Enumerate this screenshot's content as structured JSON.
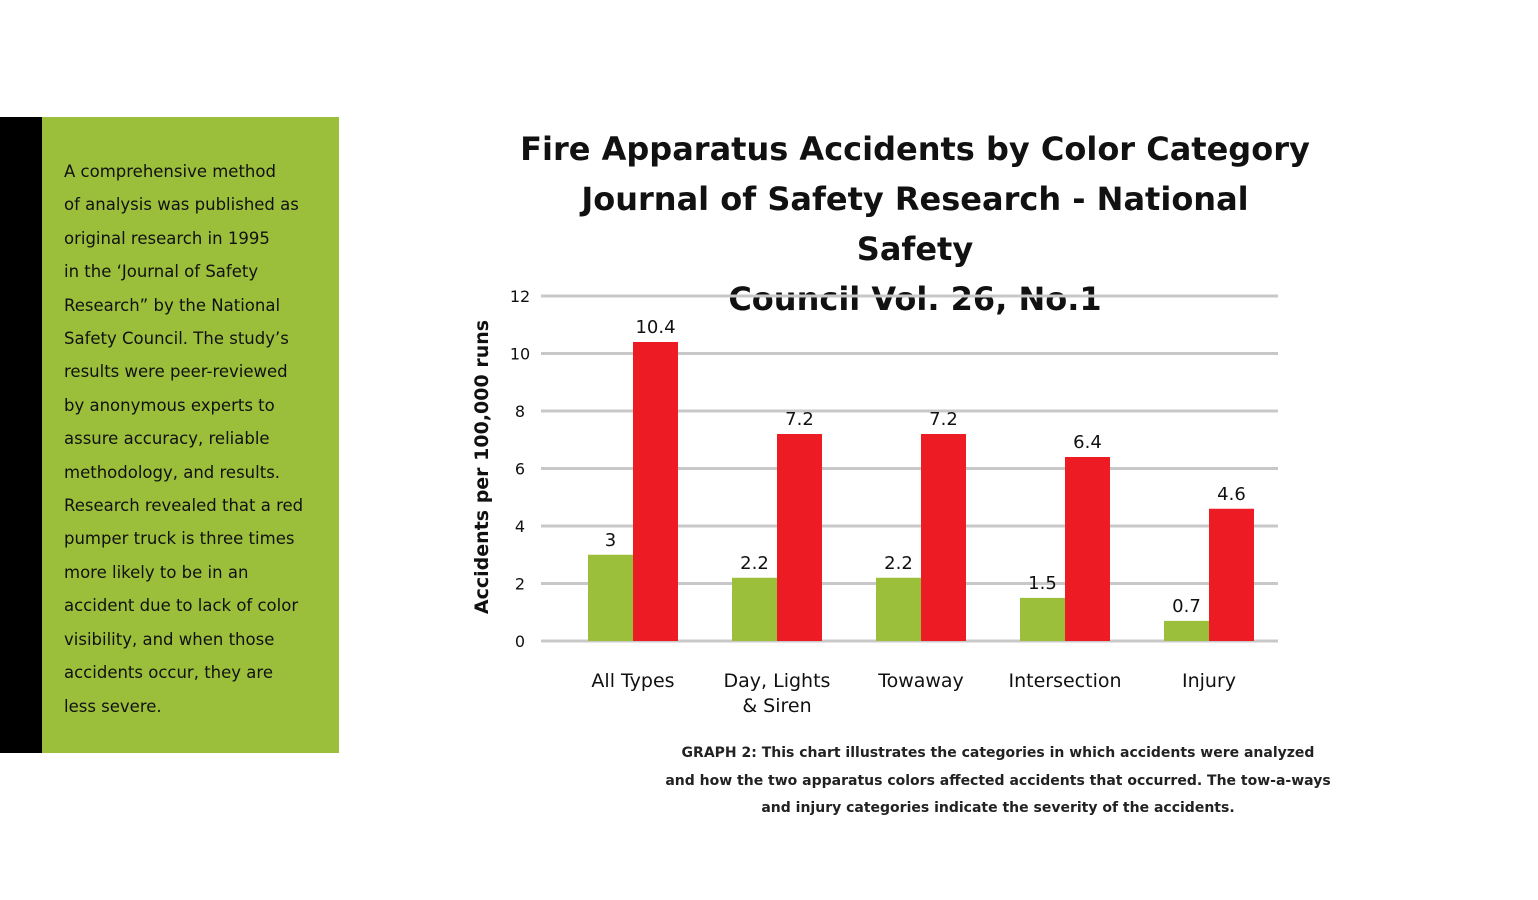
{
  "sidebar": {
    "text": "A comprehensive method\nof analysis was published as\noriginal research in 1995\nin the ‘Journal of Safety\nResearch” by the National\nSafety Council. The study’s\nresults were peer-reviewed\nby anonymous experts to\nassure accuracy, reliable\nmethodology, and results.\nResearch revealed that a red\npumper truck is three times\nmore likely to be in an\naccident due to lack of color\nvisibility, and when those\naccidents occur, they are\nless severe.",
    "background_color": "#9bbf3a",
    "accent_bar_color": "#000000"
  },
  "caption": {
    "text": "GRAPH 2: This chart illustrates the categories in which accidents were analyzed\nand how the two apparatus colors affected accidents that occurred. The tow-a-ways\nand injury categories indicate the severity of the accidents."
  },
  "chart_data": {
    "type": "bar",
    "title": "Fire Apparatus Accidents by Color Category\nJournal of Safety Research - National Safety\nCouncil  Vol. 26, No.1",
    "xlabel": "",
    "ylabel": "Accidents per 100,000 runs",
    "categories": [
      [
        "All Types"
      ],
      [
        "Day, Lights",
        "& Siren"
      ],
      [
        "Towaway"
      ],
      [
        "Intersection"
      ],
      [
        "Injury"
      ]
    ],
    "series": [
      {
        "color": "#9bbf3a",
        "values": [
          3,
          2.2,
          2.2,
          1.5,
          0.7
        ],
        "labels": [
          "3",
          "2.2",
          "2.2",
          "1.5",
          "0.7"
        ]
      },
      {
        "color": "#ed1c24",
        "values": [
          10.4,
          7.2,
          7.2,
          6.4,
          4.6
        ],
        "labels": [
          "10.4",
          "7.2",
          "7.2",
          "6.4",
          "4.6"
        ]
      }
    ],
    "ylim": [
      0,
      12
    ],
    "yticks": [
      0,
      2,
      4,
      6,
      8,
      10,
      12
    ],
    "grid": true,
    "grid_color": "#c8c8c8",
    "legend": "none"
  }
}
